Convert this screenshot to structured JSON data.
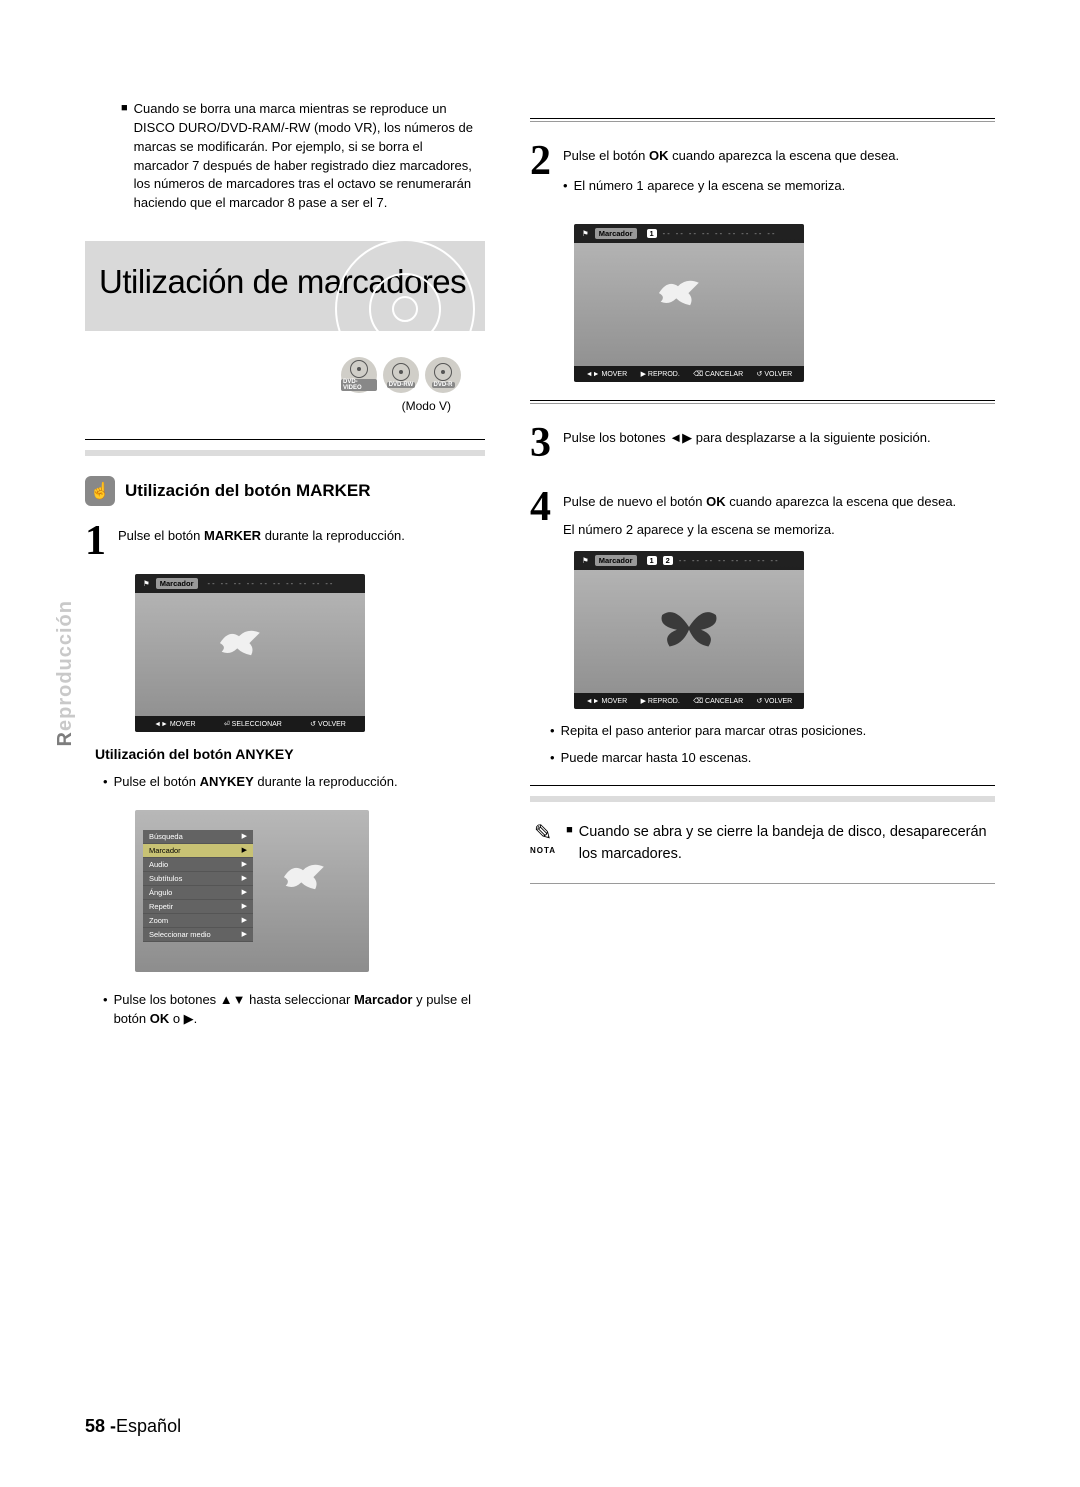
{
  "sideTab": {
    "first": "R",
    "rest": "eproducción"
  },
  "footer": {
    "page": "58 -",
    "lang": "Español"
  },
  "left": {
    "introSquare": "■",
    "intro": "Cuando se borra una marca mientras se reproduce un DISCO DURO/DVD-RAM/-RW (modo VR), los números de marcas se modificarán. Por ejemplo, si se borra el marcador 7 después de haber registrado diez marcadores, los números de marcadores tras el octavo se renumerarán haciendo que el marcador 8 pase a ser el 7.",
    "bannerTitle": "Utilización de marcadores",
    "discIcons": {
      "a": "DVD-VIDEO",
      "b": "DVD-RW",
      "c": "DVD-R"
    },
    "modo": "(Modo V)",
    "subheadMarker": "Utilización del botón MARKER",
    "step1": {
      "num": "1",
      "textA": "Pulse el botón ",
      "bold": "MARKER",
      "textB": " durante la reproducción."
    },
    "screenshot1": {
      "markerLabel": "Marcador",
      "slots": [
        "- -",
        "- -",
        "- -",
        "- -",
        "- -",
        "- -",
        "- -",
        "- -",
        "- -",
        "- -"
      ],
      "bottom": {
        "a": "◄► MOVER",
        "b": "⏎ SELECCIONAR",
        "c": "↺ VOLVER"
      }
    },
    "subheadAnykey": "Utilización del botón ANYKEY",
    "anykeyBullet": {
      "pre": "Pulse el botón ",
      "bold": "ANYKEY",
      "post": " durante la reproducción."
    },
    "screenshot2": {
      "menu": [
        "Búsqueda",
        "Marcador",
        "Audio",
        "Subtítulos",
        "Ángulo",
        "Repetir",
        "Zoom",
        "Seleccionar medio"
      ],
      "highlight": "Marcador"
    },
    "trailBullet": {
      "a": "Pulse los botones ▲▼ hasta seleccionar ",
      "bold": "Marcador",
      "b": " y pulse el botón ",
      "bold2": "OK",
      "c": " o ▶."
    }
  },
  "right": {
    "step2": {
      "num": "2",
      "textA": "Pulse el botón ",
      "bold": "OK",
      "textB": " cuando aparezca la escena que desea.",
      "sub": "El número 1 aparece y la escena se memoriza."
    },
    "screenshot3": {
      "markerLabel": "Marcador",
      "slots": [
        "1",
        "- -",
        "- -",
        "- -",
        "- -",
        "- -",
        "- -",
        "- -",
        "- -",
        "- -"
      ],
      "bottom": {
        "a": "◄► MOVER",
        "b": "▶ REPROD.",
        "c": "⌫ CANCELAR",
        "d": "↺ VOLVER"
      }
    },
    "step3": {
      "num": "3",
      "text": "Pulse los botones ◄▶ para desplazarse a la siguiente posición."
    },
    "step4": {
      "num": "4",
      "textA": "Pulse de nuevo el botón ",
      "bold": "OK",
      "textB": " cuando aparezca la escena que desea.",
      "sub": "El número 2 aparece y la escena se memoriza."
    },
    "screenshot4": {
      "markerLabel": "Marcador",
      "slots": [
        "1",
        "2",
        "- -",
        "- -",
        "- -",
        "- -",
        "- -",
        "- -",
        "- -",
        "- -"
      ],
      "bottom": {
        "a": "◄► MOVER",
        "b": "▶ REPROD.",
        "c": "⌫ CANCELAR",
        "d": "↺ VOLVER"
      }
    },
    "bullets": [
      "Repita el paso anterior para marcar otras posiciones.",
      "Puede marcar hasta 10 escenas."
    ],
    "noteIcon": "✎",
    "noteLabel": "NOTA",
    "noteSquare": "■",
    "noteText": "Cuando se abra y se cierre la bandeja de disco, desaparecerán los marcadores."
  }
}
